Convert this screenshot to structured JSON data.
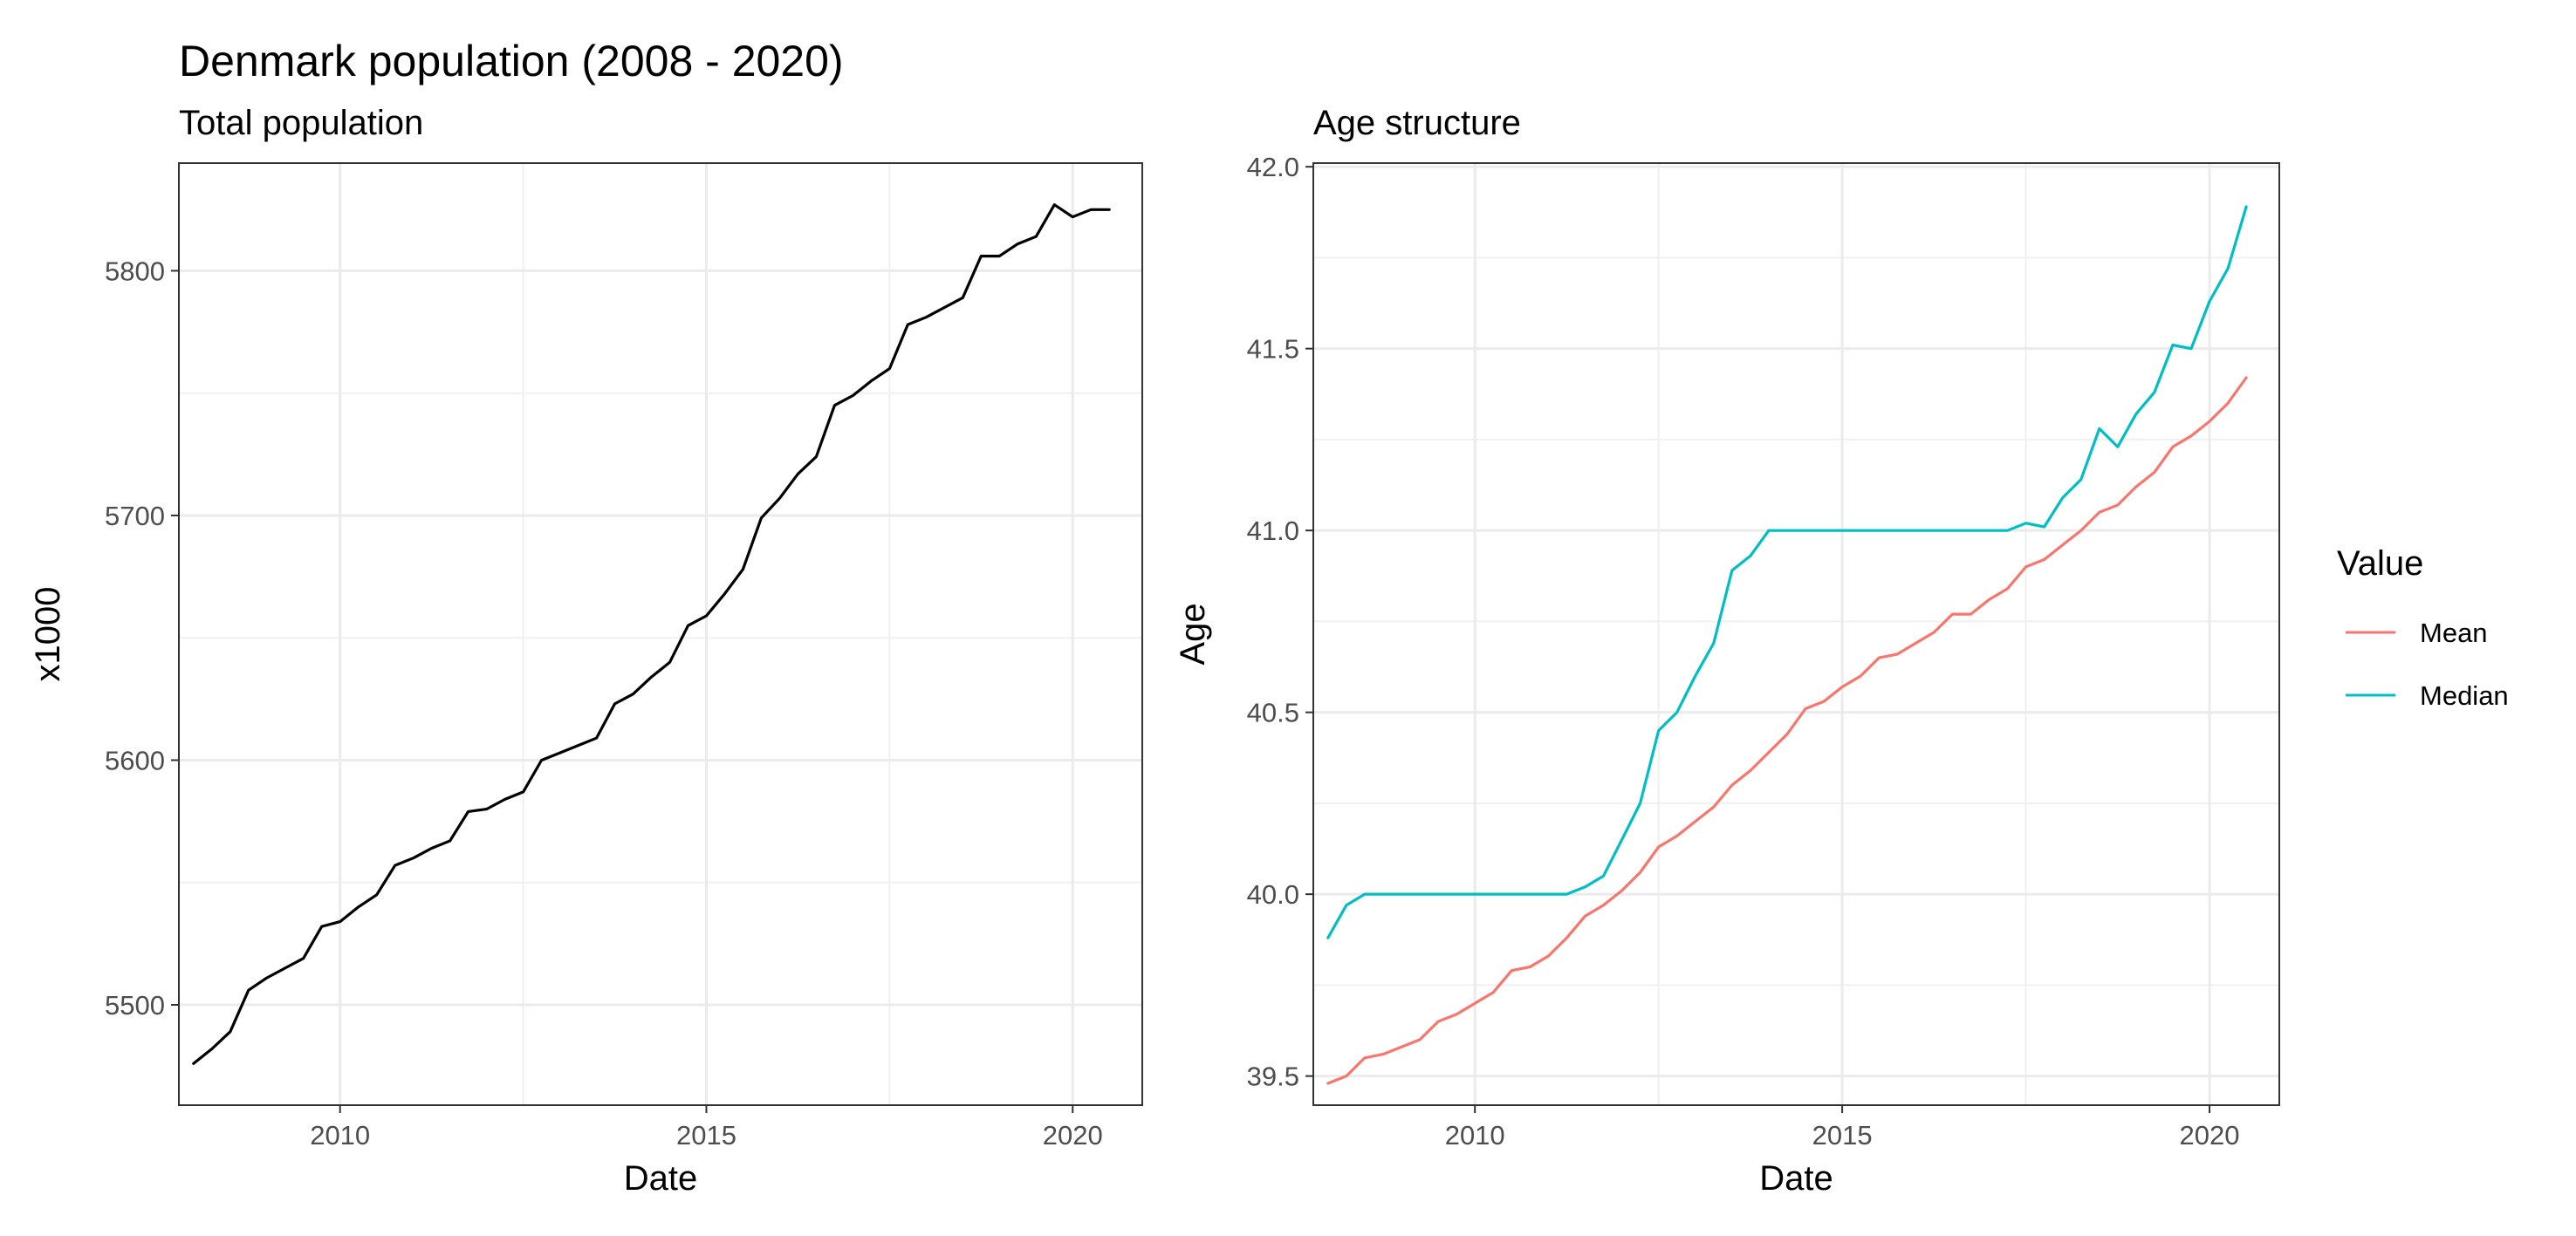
{
  "chart_data": [
    {
      "type": "line",
      "title": "Denmark population (2008 - 2020)",
      "subtitle": "Total population",
      "xlabel": "Date",
      "ylabel": "x1000",
      "xlim": [
        2007.8,
        2020.95
      ],
      "ylim": [
        5459,
        5844
      ],
      "xticks": [
        2010,
        2015,
        2020
      ],
      "yticks": [
        5500,
        5600,
        5700,
        5800
      ],
      "grid": true,
      "line_color": "#000000",
      "series": [
        {
          "x": [
            2008.0,
            2008.25,
            2008.5,
            2008.75,
            2009.0,
            2009.25,
            2009.5,
            2009.75,
            2010.0,
            2010.25,
            2010.5,
            2010.75,
            2011.0,
            2011.25,
            2011.5,
            2011.75,
            2012.0,
            2012.25,
            2012.5,
            2012.75,
            2013.0,
            2013.25,
            2013.5,
            2013.75,
            2014.0,
            2014.25,
            2014.5,
            2014.75,
            2015.0,
            2015.25,
            2015.5,
            2015.75,
            2016.0,
            2016.25,
            2016.5,
            2016.75,
            2017.0,
            2017.25,
            2017.5,
            2017.75,
            2018.0,
            2018.25,
            2018.5,
            2018.75,
            2019.0,
            2019.25,
            2019.5,
            2019.75,
            2020.0,
            2020.25,
            2020.5
          ],
          "values": [
            5476,
            5482,
            5489,
            5506,
            5511,
            5515,
            5519,
            5532,
            5534,
            5540,
            5545,
            5557,
            5560,
            5564,
            5567,
            5579,
            5580,
            5584,
            5587,
            5600,
            5603,
            5606,
            5609,
            5623,
            5627,
            5634,
            5640,
            5655,
            5659,
            5668,
            5678,
            5699,
            5707,
            5717,
            5724,
            5745,
            5749,
            5755,
            5760,
            5778,
            5781,
            5785,
            5789,
            5806,
            5806,
            5811,
            5814,
            5827,
            5822,
            5825,
            5825
          ]
        }
      ]
    },
    {
      "type": "line",
      "subtitle": "Age structure",
      "xlabel": "Date",
      "ylabel": "Age",
      "xlim": [
        2007.8,
        2020.95
      ],
      "ylim": [
        39.42,
        42.01
      ],
      "xticks": [
        2010,
        2015,
        2020
      ],
      "yticks": [
        "39.5",
        "40.0",
        "40.5",
        "41.0",
        "41.5",
        "42.0"
      ],
      "grid": true,
      "legend_title": "Value",
      "legend_position": "right",
      "series": [
        {
          "name": "Mean",
          "color": "#F8766D",
          "x": [
            2008.0,
            2008.25,
            2008.5,
            2008.75,
            2009.0,
            2009.25,
            2009.5,
            2009.75,
            2010.0,
            2010.25,
            2010.5,
            2010.75,
            2011.0,
            2011.25,
            2011.5,
            2011.75,
            2012.0,
            2012.25,
            2012.5,
            2012.75,
            2013.0,
            2013.25,
            2013.5,
            2013.75,
            2014.0,
            2014.25,
            2014.5,
            2014.75,
            2015.0,
            2015.25,
            2015.5,
            2015.75,
            2016.0,
            2016.25,
            2016.5,
            2016.75,
            2017.0,
            2017.25,
            2017.5,
            2017.75,
            2018.0,
            2018.25,
            2018.5,
            2018.75,
            2019.0,
            2019.25,
            2019.5,
            2019.75,
            2020.0,
            2020.25,
            2020.5
          ],
          "values": [
            39.48,
            39.5,
            39.55,
            39.56,
            39.58,
            39.6,
            39.65,
            39.67,
            39.7,
            39.73,
            39.79,
            39.8,
            39.83,
            39.88,
            39.94,
            39.97,
            40.01,
            40.06,
            40.13,
            40.16,
            40.2,
            40.24,
            40.3,
            40.34,
            40.39,
            40.44,
            40.51,
            40.53,
            40.57,
            40.6,
            40.65,
            40.66,
            40.69,
            40.72,
            40.77,
            40.77,
            40.81,
            40.84,
            40.9,
            40.92,
            40.96,
            41.0,
            41.05,
            41.07,
            41.12,
            41.16,
            41.23,
            41.26,
            41.3,
            41.35,
            41.42
          ]
        },
        {
          "name": "Median",
          "color": "#00BFC4",
          "x": [
            2008.0,
            2008.25,
            2008.5,
            2008.75,
            2009.0,
            2009.25,
            2009.5,
            2009.75,
            2010.0,
            2010.25,
            2010.5,
            2010.75,
            2011.0,
            2011.25,
            2011.5,
            2011.75,
            2012.0,
            2012.25,
            2012.5,
            2012.75,
            2013.0,
            2013.25,
            2013.5,
            2013.75,
            2014.0,
            2014.25,
            2014.5,
            2014.75,
            2015.0,
            2015.25,
            2015.5,
            2015.75,
            2016.0,
            2016.25,
            2016.5,
            2016.75,
            2017.0,
            2017.25,
            2017.5,
            2017.75,
            2018.0,
            2018.25,
            2018.5,
            2018.75,
            2019.0,
            2019.25,
            2019.5,
            2019.75,
            2020.0,
            2020.25,
            2020.5
          ],
          "values": [
            39.88,
            39.97,
            40.0,
            40.0,
            40.0,
            40.0,
            40.0,
            40.0,
            40.0,
            40.0,
            40.0,
            40.0,
            40.0,
            40.0,
            40.02,
            40.05,
            40.15,
            40.25,
            40.45,
            40.5,
            40.6,
            40.69,
            40.89,
            40.93,
            41.0,
            41.0,
            41.0,
            41.0,
            41.0,
            41.0,
            41.0,
            41.0,
            41.0,
            41.0,
            41.0,
            41.0,
            41.0,
            41.0,
            41.02,
            41.01,
            41.09,
            41.14,
            41.28,
            41.23,
            41.32,
            41.38,
            41.51,
            41.5,
            41.63,
            41.72,
            41.89
          ]
        }
      ]
    }
  ]
}
